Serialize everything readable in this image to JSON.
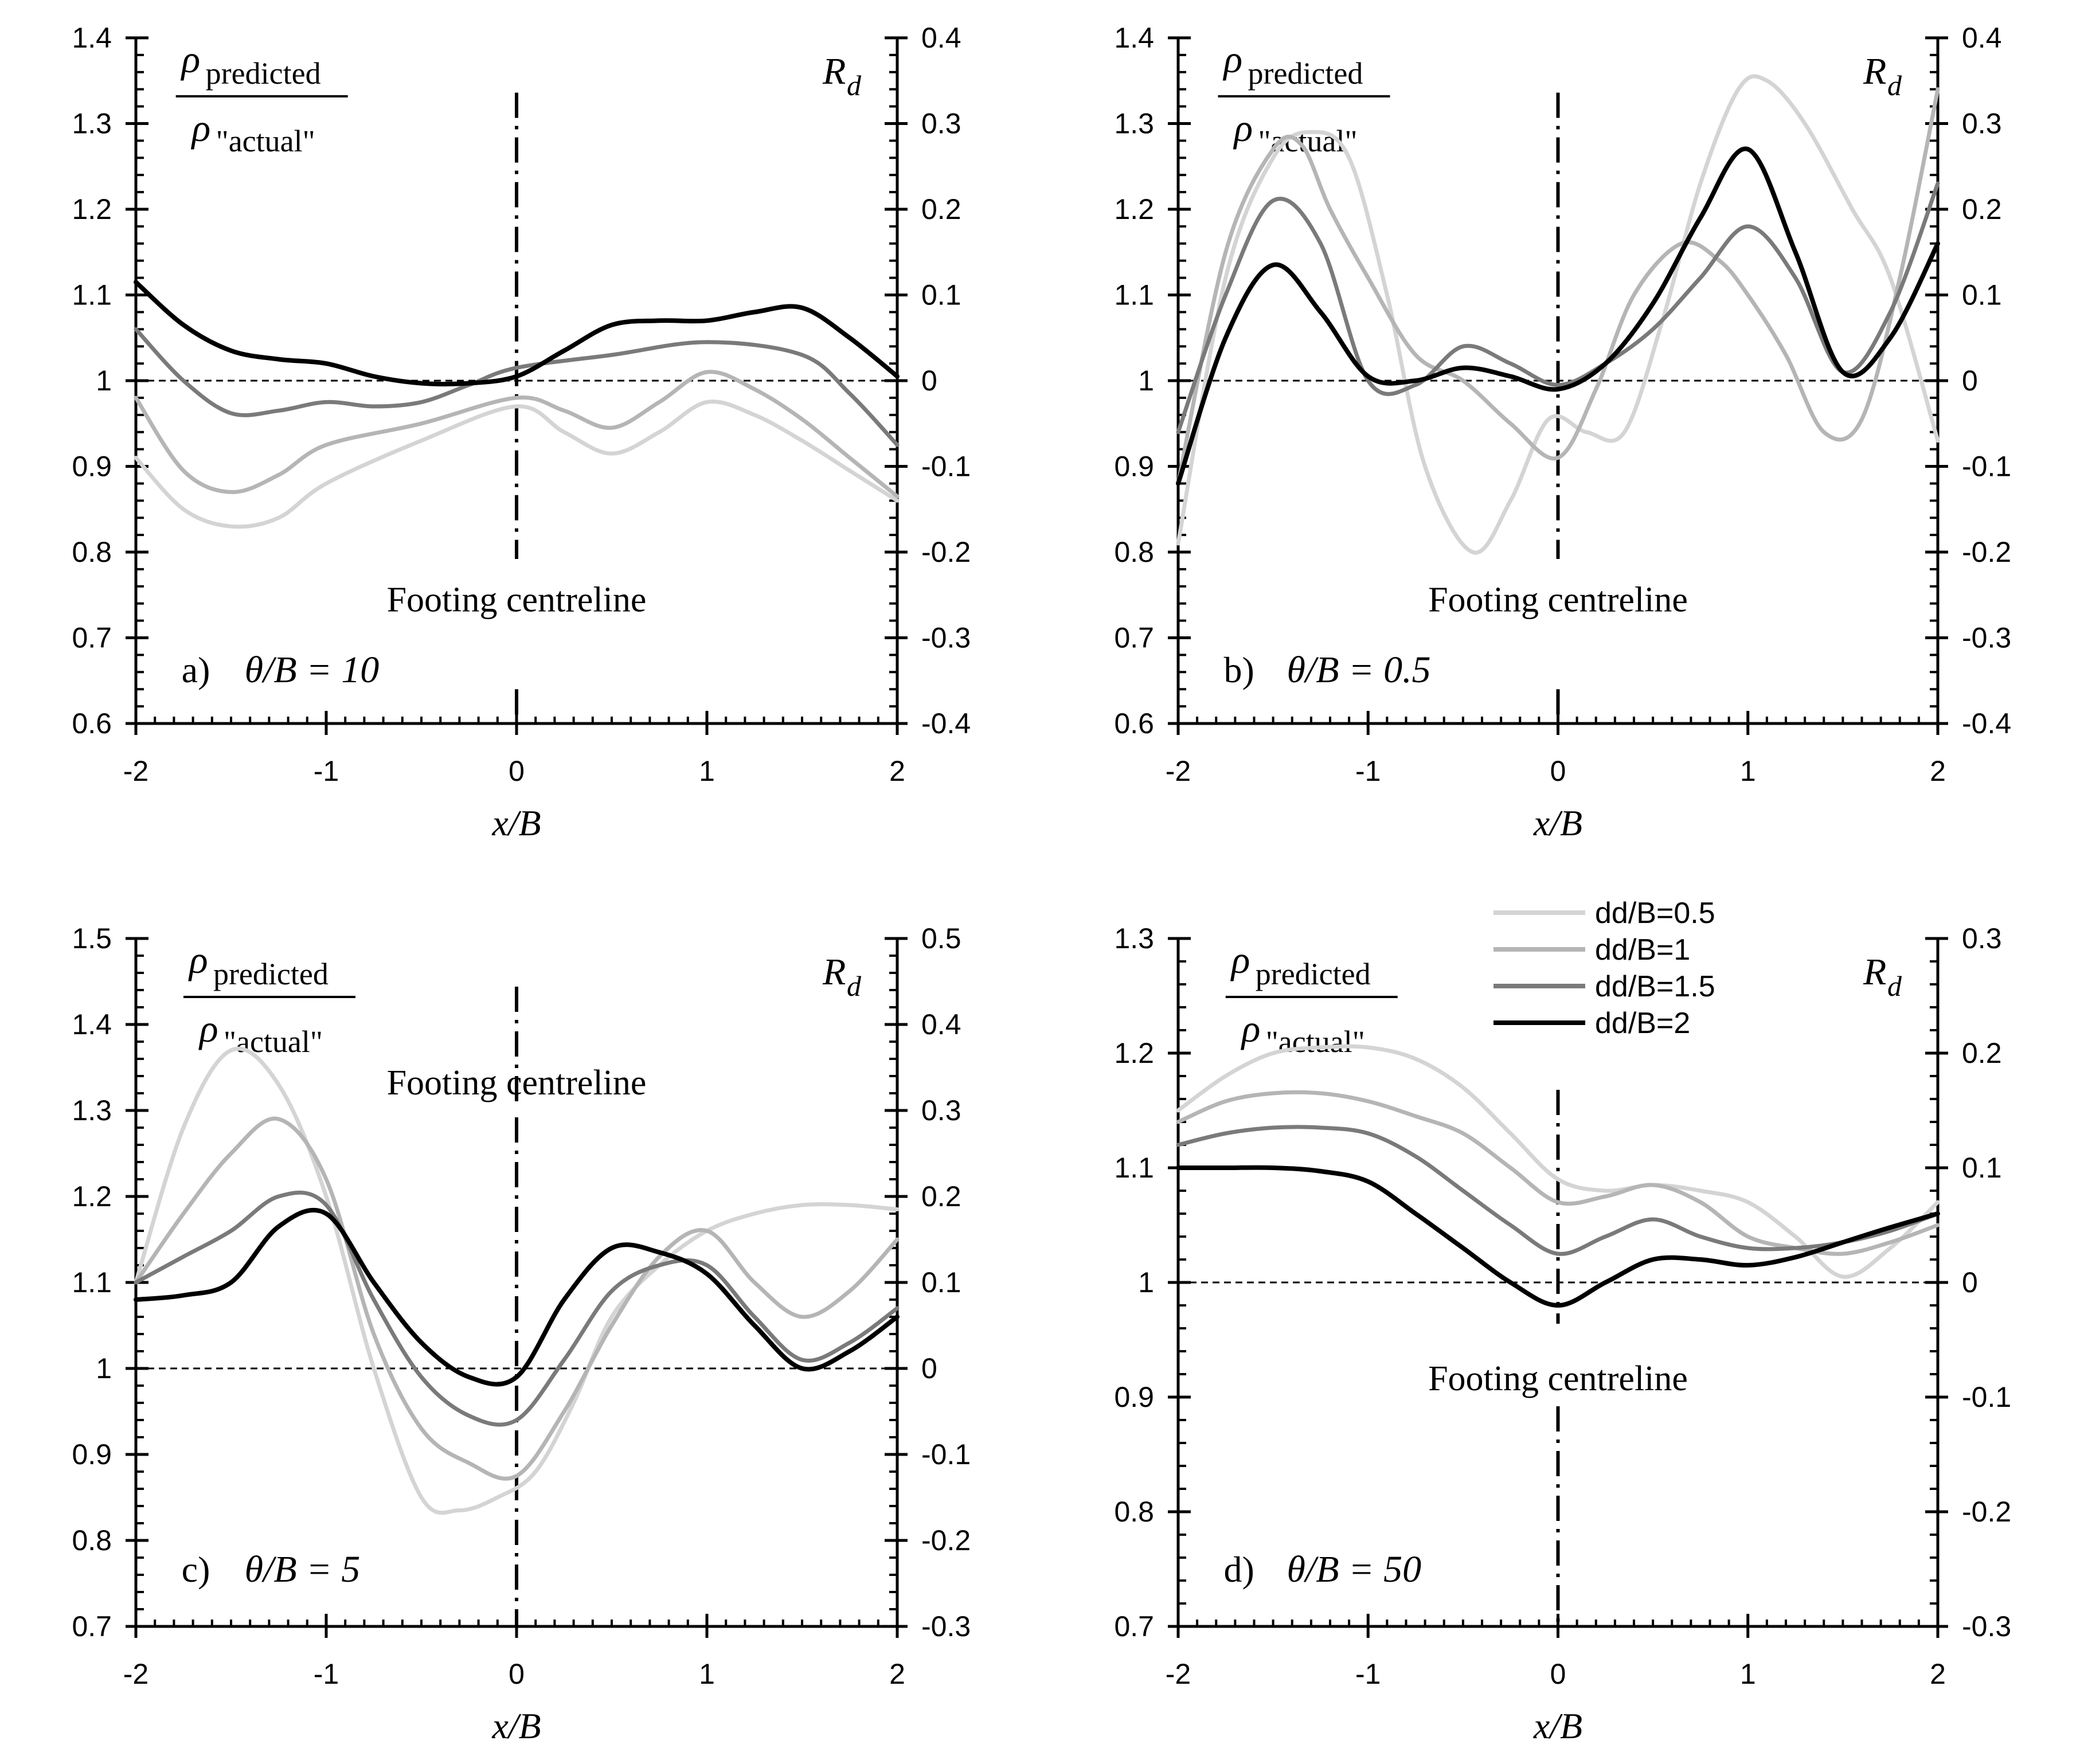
{
  "figure": {
    "legend": {
      "entries": [
        {
          "label": "dd/B=0.5",
          "color": "#d4d4d4"
        },
        {
          "label": "dd/B=1",
          "color": "#b5b5b5"
        },
        {
          "label": "dd/B=1.5",
          "color": "#7a7a7a"
        },
        {
          "label": "dd/B=2",
          "color": "#000000"
        }
      ]
    }
  },
  "chart_data": [
    {
      "type": "line",
      "panel_label": "a)",
      "param_label": "θ/B = 10",
      "xlabel": "x/B",
      "y_left_label": {
        "numerator": "ρ",
        "numerator_sub": "predicted",
        "denominator": "ρ",
        "denominator_sub": "\"actual\""
      },
      "y_right_label": {
        "symbol": "R",
        "sub": "d"
      },
      "centreline_label": "Footing centreline",
      "xlim": [
        -2,
        2
      ],
      "ylim": [
        0.6,
        1.4
      ],
      "ylim_right": [
        -0.4,
        0.4
      ],
      "x_ticks": [
        "-2",
        "-1",
        "0",
        "1",
        "2"
      ],
      "y_ticks": [
        "0.6",
        "0.7",
        "0.8",
        "0.9",
        "1",
        "1.1",
        "1.2",
        "1.3",
        "1.4"
      ],
      "y_right_ticks": [
        "-0.4",
        "-0.3",
        "-0.2",
        "-0.1",
        "0",
        "0.1",
        "0.2",
        "0.3",
        "0.4"
      ],
      "reference_line": 1,
      "series": [
        {
          "name": "dd/B=0.5",
          "x": [
            -2,
            -1.75,
            -1.5,
            -1.25,
            -1,
            -0.5,
            0,
            0.25,
            0.5,
            0.75,
            1,
            1.25,
            1.5,
            1.75,
            2
          ],
          "y": [
            0.91,
            0.85,
            0.83,
            0.84,
            0.88,
            0.93,
            0.97,
            0.94,
            0.915,
            0.94,
            0.975,
            0.96,
            0.93,
            0.895,
            0.86
          ]
        },
        {
          "name": "dd/B=1",
          "x": [
            -2,
            -1.75,
            -1.5,
            -1.25,
            -1,
            -0.5,
            0,
            0.25,
            0.5,
            0.75,
            1,
            1.25,
            1.5,
            1.75,
            2
          ],
          "y": [
            0.98,
            0.895,
            0.87,
            0.89,
            0.925,
            0.95,
            0.98,
            0.965,
            0.945,
            0.975,
            1.01,
            0.99,
            0.955,
            0.91,
            0.865
          ]
        },
        {
          "name": "dd/B=1.5",
          "x": [
            -2,
            -1.75,
            -1.5,
            -1.25,
            -1,
            -0.75,
            -0.5,
            -0.25,
            0,
            0.5,
            1,
            1.5,
            1.75,
            2
          ],
          "y": [
            1.06,
            1.0,
            0.962,
            0.965,
            0.975,
            0.97,
            0.975,
            0.995,
            1.015,
            1.03,
            1.045,
            1.03,
            0.985,
            0.925
          ]
        },
        {
          "name": "dd/B=2",
          "x": [
            -2,
            -1.75,
            -1.5,
            -1.25,
            -1,
            -0.75,
            -0.5,
            -0.25,
            0,
            0.25,
            0.5,
            0.75,
            1,
            1.25,
            1.5,
            1.75,
            2
          ],
          "y": [
            1.115,
            1.065,
            1.035,
            1.025,
            1.02,
            1.005,
            0.997,
            0.997,
            1.005,
            1.035,
            1.065,
            1.07,
            1.07,
            1.08,
            1.085,
            1.05,
            1.005
          ]
        }
      ]
    },
    {
      "type": "line",
      "panel_label": "b)",
      "param_label": "θ/B = 0.5",
      "xlabel": "x/B",
      "y_left_label": {
        "numerator": "ρ",
        "numerator_sub": "predicted",
        "denominator": "ρ",
        "denominator_sub": "\"actual\""
      },
      "y_right_label": {
        "symbol": "R",
        "sub": "d"
      },
      "centreline_label": "Footing centreline",
      "xlim": [
        -2,
        2
      ],
      "ylim": [
        0.6,
        1.4
      ],
      "ylim_right": [
        -0.4,
        0.4
      ],
      "x_ticks": [
        "-2",
        "-1",
        "0",
        "1",
        "2"
      ],
      "y_ticks": [
        "0.6",
        "0.7",
        "0.8",
        "0.9",
        "1",
        "1.1",
        "1.2",
        "1.3",
        "1.4"
      ],
      "y_right_ticks": [
        "-0.4",
        "-0.3",
        "-0.2",
        "-0.1",
        "0",
        "0.1",
        "0.2",
        "0.3",
        "0.4"
      ],
      "reference_line": 1,
      "series": [
        {
          "name": "dd/B=0.5",
          "x": [
            -2,
            -1.75,
            -1.5,
            -1.3,
            -1.1,
            -0.9,
            -0.7,
            -0.45,
            -0.25,
            -0.05,
            0.15,
            0.35,
            0.55,
            0.75,
            0.95,
            1.1,
            1.3,
            1.55,
            1.75,
            2
          ],
          "y": [
            0.81,
            1.12,
            1.26,
            1.29,
            1.26,
            1.1,
            0.9,
            0.8,
            0.86,
            0.955,
            0.94,
            0.94,
            1.07,
            1.23,
            1.34,
            1.35,
            1.3,
            1.2,
            1.12,
            0.93
          ]
        },
        {
          "name": "dd/B=1",
          "x": [
            -2,
            -1.75,
            -1.5,
            -1.35,
            -1.2,
            -1,
            -0.75,
            -0.5,
            -0.25,
            0,
            0.2,
            0.4,
            0.65,
            0.85,
            1,
            1.2,
            1.4,
            1.6,
            1.8,
            2
          ],
          "y": [
            0.88,
            1.15,
            1.27,
            1.275,
            1.2,
            1.12,
            1.03,
            1.0,
            0.95,
            0.91,
            0.99,
            1.1,
            1.16,
            1.14,
            1.1,
            1.03,
            0.94,
            0.955,
            1.12,
            1.34
          ]
        },
        {
          "name": "dd/B=1.5",
          "x": [
            -2,
            -1.75,
            -1.5,
            -1.25,
            -1,
            -0.75,
            -0.5,
            -0.25,
            0,
            0.25,
            0.5,
            0.75,
            1,
            1.25,
            1.5,
            1.75,
            2
          ],
          "y": [
            0.94,
            1.1,
            1.21,
            1.16,
            1.0,
            0.995,
            1.04,
            1.02,
            0.995,
            1.02,
            1.06,
            1.12,
            1.18,
            1.12,
            1.01,
            1.08,
            1.23
          ]
        },
        {
          "name": "dd/B=2",
          "x": [
            -2,
            -1.75,
            -1.5,
            -1.25,
            -1,
            -0.75,
            -0.5,
            -0.25,
            0,
            0.25,
            0.5,
            0.75,
            1,
            1.25,
            1.5,
            1.75,
            2
          ],
          "y": [
            0.88,
            1.05,
            1.135,
            1.08,
            1.005,
            1.0,
            1.015,
            1.005,
            0.99,
            1.02,
            1.09,
            1.19,
            1.27,
            1.15,
            1.01,
            1.05,
            1.16
          ]
        }
      ]
    },
    {
      "type": "line",
      "panel_label": "c)",
      "param_label": "θ/B = 5",
      "xlabel": "x/B",
      "y_left_label": {
        "numerator": "ρ",
        "numerator_sub": "predicted",
        "denominator": "ρ",
        "denominator_sub": "\"actual\""
      },
      "y_right_label": {
        "symbol": "R",
        "sub": "d"
      },
      "centreline_label": "Footing centreline",
      "xlim": [
        -2,
        2
      ],
      "ylim": [
        0.7,
        1.5
      ],
      "ylim_right": [
        -0.3,
        0.5
      ],
      "x_ticks": [
        "-2",
        "-1",
        "0",
        "1",
        "2"
      ],
      "y_ticks": [
        "0.7",
        "0.8",
        "0.9",
        "1",
        "1.1",
        "1.2",
        "1.3",
        "1.4",
        "1.5"
      ],
      "y_right_ticks": [
        "-0.3",
        "-0.2",
        "-0.1",
        "0",
        "0.1",
        "0.2",
        "0.3",
        "0.4",
        "0.5"
      ],
      "reference_line": 1,
      "series": [
        {
          "name": "dd/B=0.5",
          "x": [
            -2,
            -1.75,
            -1.5,
            -1.25,
            -1,
            -0.75,
            -0.5,
            -0.3,
            -0.1,
            0.1,
            0.3,
            0.5,
            0.75,
            1,
            1.25,
            1.5,
            1.75,
            2
          ],
          "y": [
            1.1,
            1.28,
            1.37,
            1.33,
            1.2,
            1.0,
            0.85,
            0.835,
            0.85,
            0.88,
            0.96,
            1.06,
            1.12,
            1.16,
            1.18,
            1.19,
            1.19,
            1.185
          ]
        },
        {
          "name": "dd/B=1",
          "x": [
            -2,
            -1.75,
            -1.5,
            -1.25,
            -1,
            -0.75,
            -0.5,
            -0.25,
            0,
            0.25,
            0.5,
            0.75,
            1,
            1.25,
            1.5,
            1.75,
            2
          ],
          "y": [
            1.1,
            1.18,
            1.25,
            1.29,
            1.22,
            1.04,
            0.93,
            0.89,
            0.875,
            0.95,
            1.05,
            1.13,
            1.16,
            1.1,
            1.06,
            1.09,
            1.15
          ]
        },
        {
          "name": "dd/B=1.5",
          "x": [
            -2,
            -1.75,
            -1.5,
            -1.25,
            -1,
            -0.75,
            -0.5,
            -0.25,
            0,
            0.25,
            0.5,
            0.75,
            1,
            1.25,
            1.5,
            1.75,
            2
          ],
          "y": [
            1.1,
            1.13,
            1.16,
            1.2,
            1.19,
            1.08,
            0.99,
            0.945,
            0.94,
            1.01,
            1.09,
            1.12,
            1.12,
            1.06,
            1.01,
            1.03,
            1.07
          ]
        },
        {
          "name": "dd/B=2",
          "x": [
            -2,
            -1.75,
            -1.5,
            -1.25,
            -1,
            -0.75,
            -0.5,
            -0.25,
            0,
            0.25,
            0.5,
            0.75,
            1,
            1.25,
            1.5,
            1.75,
            2
          ],
          "y": [
            1.08,
            1.085,
            1.1,
            1.165,
            1.18,
            1.1,
            1.03,
            0.99,
            0.99,
            1.08,
            1.14,
            1.135,
            1.11,
            1.05,
            1.0,
            1.02,
            1.06
          ]
        }
      ]
    },
    {
      "type": "line",
      "panel_label": "d)",
      "param_label": "θ/B = 50",
      "xlabel": "x/B",
      "y_left_label": {
        "numerator": "ρ",
        "numerator_sub": "predicted",
        "denominator": "ρ",
        "denominator_sub": "\"actual\""
      },
      "y_right_label": {
        "symbol": "R",
        "sub": "d"
      },
      "centreline_label": "Footing centreline",
      "xlim": [
        -2,
        2
      ],
      "ylim": [
        0.7,
        1.3
      ],
      "ylim_right": [
        -0.3,
        0.3
      ],
      "x_ticks": [
        "-2",
        "-1",
        "0",
        "1",
        "2"
      ],
      "y_ticks": [
        "0.7",
        "0.8",
        "0.9",
        "1",
        "1.1",
        "1.2",
        "1.3"
      ],
      "y_right_ticks": [
        "-0.3",
        "-0.2",
        "-0.1",
        "0",
        "0.1",
        "0.2",
        "0.3"
      ],
      "reference_line": 1,
      "series": [
        {
          "name": "dd/B=0.5",
          "x": [
            -2,
            -1.75,
            -1.5,
            -1.25,
            -1,
            -0.75,
            -0.5,
            -0.25,
            0,
            0.25,
            0.5,
            0.75,
            1,
            1.25,
            1.5,
            1.75,
            2
          ],
          "y": [
            1.15,
            1.18,
            1.2,
            1.205,
            1.205,
            1.195,
            1.17,
            1.13,
            1.09,
            1.08,
            1.085,
            1.08,
            1.07,
            1.04,
            1.005,
            1.03,
            1.07
          ]
        },
        {
          "name": "dd/B=1",
          "x": [
            -2,
            -1.75,
            -1.5,
            -1.25,
            -1,
            -0.75,
            -0.5,
            -0.25,
            0,
            0.25,
            0.5,
            0.75,
            1,
            1.25,
            1.5,
            1.75,
            2
          ],
          "y": [
            1.14,
            1.158,
            1.165,
            1.165,
            1.158,
            1.145,
            1.13,
            1.1,
            1.07,
            1.075,
            1.085,
            1.07,
            1.04,
            1.03,
            1.025,
            1.035,
            1.05
          ]
        },
        {
          "name": "dd/B=1.5",
          "x": [
            -2,
            -1.75,
            -1.5,
            -1.25,
            -1,
            -0.75,
            -0.5,
            -0.25,
            0,
            0.25,
            0.5,
            0.75,
            1,
            1.25,
            1.5,
            1.75,
            2
          ],
          "y": [
            1.12,
            1.13,
            1.135,
            1.135,
            1.13,
            1.11,
            1.08,
            1.05,
            1.025,
            1.04,
            1.055,
            1.04,
            1.03,
            1.03,
            1.035,
            1.045,
            1.06
          ]
        },
        {
          "name": "dd/B=2",
          "x": [
            -2,
            -1.75,
            -1.5,
            -1.25,
            -1,
            -0.75,
            -0.5,
            -0.25,
            0,
            0.25,
            0.5,
            0.75,
            1,
            1.25,
            1.5,
            1.75,
            2
          ],
          "y": [
            1.1,
            1.1,
            1.1,
            1.097,
            1.088,
            1.06,
            1.03,
            1.0,
            0.98,
            1.0,
            1.02,
            1.02,
            1.015,
            1.022,
            1.035,
            1.048,
            1.06
          ]
        }
      ]
    }
  ]
}
